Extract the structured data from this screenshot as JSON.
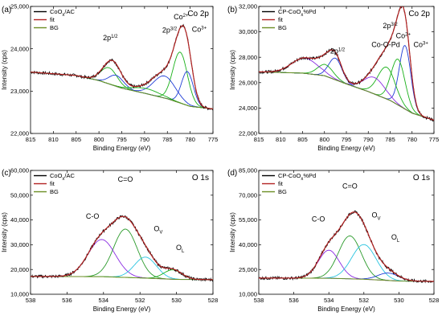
{
  "figure": {
    "panels": [
      "(a)",
      "(b)",
      "(c)",
      "(d)"
    ]
  },
  "colors": {
    "raw": "#000000",
    "fit": "#b22222",
    "bg": "#6b8e23",
    "blue": "#1f3cd6",
    "green": "#19b019",
    "cyan": "#29c4e0",
    "purple": "#8a2be2",
    "greenDark": "#2a9a2a"
  },
  "chart_data": [
    {
      "panel": "(a)",
      "type": "line",
      "title": "Co 2p",
      "xlabel": "Binding Energy (eV)",
      "ylabel": "Intensity (cps)",
      "xlim": [
        815,
        775
      ],
      "ylim": [
        22000,
        25000
      ],
      "xticks": [
        815,
        810,
        805,
        800,
        795,
        790,
        785,
        780,
        775
      ],
      "yticks": [
        22000,
        23000,
        24000,
        25000
      ],
      "ytick_labels": [
        "22,000",
        "23,000",
        "24,000",
        "25,000"
      ],
      "legend": {
        "position": "top-left",
        "entries": [
          "CoOx/AC",
          "fit",
          "BG"
        ]
      },
      "legend_parts": [
        [
          "CoO",
          "x",
          "/AC"
        ],
        [
          "fit"
        ],
        [
          "BG"
        ]
      ],
      "annotations": [
        {
          "parts": [
            [
              "2p",
              ""
            ],
            [
              "1/2",
              "sup"
            ]
          ],
          "x": 797.5,
          "y": 24200
        },
        {
          "parts": [
            [
              "2p",
              ""
            ],
            [
              "3/2",
              "sup"
            ]
          ],
          "x": 784.5,
          "y": 24380
        },
        {
          "parts": [
            [
              "Co",
              ""
            ],
            [
              "2+",
              "sup"
            ]
          ],
          "x": 782,
          "y": 24700
        },
        {
          "parts": [
            [
              "Co",
              ""
            ],
            [
              "3+",
              "sup"
            ]
          ],
          "x": 778,
          "y": 24400
        }
      ],
      "baseline_points": [
        [
          815,
          23450
        ],
        [
          805,
          23370
        ],
        [
          800,
          23250
        ],
        [
          795,
          23070
        ],
        [
          790,
          22950
        ],
        [
          785,
          22820
        ],
        [
          780,
          22640
        ],
        [
          775,
          22580
        ]
      ],
      "peaks": [
        {
          "center": 782.2,
          "height": 1200,
          "width": 1.6,
          "color": "green"
        },
        {
          "center": 780.6,
          "height": 800,
          "width": 1.3,
          "color": "blue"
        },
        {
          "center": 785.6,
          "height": 520,
          "width": 2.4,
          "color": "blue"
        },
        {
          "center": 797.8,
          "height": 380,
          "width": 1.8,
          "color": "green"
        },
        {
          "center": 796.2,
          "height": 260,
          "width": 1.6,
          "color": "blue"
        },
        {
          "center": 789.5,
          "height": 120,
          "width": 3.0,
          "color": "green"
        }
      ]
    },
    {
      "panel": "(b)",
      "type": "line",
      "title": "Co 2p",
      "xlabel": "Binding Energy (eV)",
      "ylabel": "Intensity (cps)",
      "xlim": [
        815,
        775
      ],
      "ylim": [
        22000,
        32000
      ],
      "xticks": [
        815,
        810,
        805,
        800,
        795,
        790,
        785,
        780,
        775
      ],
      "yticks": [
        22000,
        24000,
        26000,
        28000,
        30000,
        32000
      ],
      "ytick_labels": [
        "22,000",
        "24,000",
        "26,000",
        "28,000",
        "30,000",
        "32,000"
      ],
      "legend": {
        "position": "top-left",
        "entries": [
          "CP-CoOx%Pd",
          "fit",
          "BG"
        ]
      },
      "legend_parts": [
        [
          "CP-CoO",
          "x",
          "%Pd"
        ],
        [
          "fit"
        ],
        [
          "BG"
        ]
      ],
      "annotations": [
        {
          "parts": [
            [
              "2p",
              ""
            ],
            [
              "1/2",
              "sup"
            ]
          ],
          "x": 797,
          "y": 28300
        },
        {
          "parts": [
            [
              "2p",
              ""
            ],
            [
              "3/2",
              "sup"
            ]
          ],
          "x": 785,
          "y": 30300
        },
        {
          "parts": [
            [
              "Co",
              ""
            ],
            [
              "2+",
              "sup"
            ]
          ],
          "x": 782,
          "y": 29500
        },
        {
          "parts": [
            [
              "Co",
              ""
            ],
            [
              "3+",
              "sup"
            ]
          ],
          "x": 778,
          "y": 28800
        },
        {
          "parts": [
            [
              "Co-O-Pd",
              ""
            ]
          ],
          "x": 786,
          "y": 28800,
          "color": "fit"
        }
      ],
      "baseline_points": [
        [
          815,
          26850
        ],
        [
          805,
          26750
        ],
        [
          800,
          26550
        ],
        [
          795,
          25900
        ],
        [
          790,
          25300
        ],
        [
          785,
          24600
        ],
        [
          780,
          23600
        ],
        [
          775,
          23050
        ]
      ],
      "peaks": [
        {
          "center": 781.6,
          "height": 5000,
          "width": 1.3,
          "color": "blue"
        },
        {
          "center": 783.2,
          "height": 3600,
          "width": 1.6,
          "color": "green"
        },
        {
          "center": 785.8,
          "height": 2500,
          "width": 2.0,
          "color": "green"
        },
        {
          "center": 788.6,
          "height": 1300,
          "width": 2.4,
          "color": "purple"
        },
        {
          "center": 797.5,
          "height": 1700,
          "width": 1.5,
          "color": "blue"
        },
        {
          "center": 799.8,
          "height": 900,
          "width": 1.8,
          "color": "green"
        },
        {
          "center": 804.5,
          "height": 1200,
          "width": 3.0,
          "color": "purple"
        }
      ]
    },
    {
      "panel": "(c)",
      "type": "line",
      "title": "O 1s",
      "xlabel": "Binding Energy (eV)",
      "ylabel": "Intensity (cps)",
      "xlim": [
        538,
        528
      ],
      "ylim": [
        10000,
        60000
      ],
      "xticks": [
        538,
        536,
        534,
        532,
        530,
        528
      ],
      "yticks": [
        10000,
        20000,
        30000,
        40000,
        50000,
        60000
      ],
      "ytick_labels": [
        "10,000",
        "20,000",
        "30,000",
        "40,000",
        "50,000",
        "60,000"
      ],
      "legend": {
        "position": "top-left",
        "entries": [
          "CoOx/AC",
          "fit",
          "BG"
        ]
      },
      "legend_parts": [
        [
          "CoO",
          "x",
          "/AC"
        ],
        [
          "fit"
        ],
        [
          "BG"
        ]
      ],
      "annotations": [
        {
          "parts": [
            [
              "C=O",
              ""
            ]
          ],
          "x": 532.8,
          "y": 55500
        },
        {
          "parts": [
            [
              "C-O",
              ""
            ]
          ],
          "x": 534.6,
          "y": 40500
        },
        {
          "parts": [
            [
              "O",
              ""
            ],
            [
              "V",
              "sub"
            ]
          ],
          "x": 531.0,
          "y": 35500
        },
        {
          "parts": [
            [
              "O",
              ""
            ],
            [
              "L",
              "sub"
            ]
          ],
          "x": 529.8,
          "y": 27800
        }
      ],
      "baseline_points": [
        [
          538,
          17200
        ],
        [
          534,
          17100
        ],
        [
          532,
          16600
        ],
        [
          530,
          16000
        ],
        [
          528,
          15900
        ]
      ],
      "peaks": [
        {
          "center": 532.8,
          "height": 19500,
          "width": 0.65,
          "color": "greenDark"
        },
        {
          "center": 534.1,
          "height": 15000,
          "width": 0.75,
          "color": "purple"
        },
        {
          "center": 531.7,
          "height": 8500,
          "width": 0.6,
          "color": "cyan"
        },
        {
          "center": 530.2,
          "height": 3800,
          "width": 0.5,
          "color": "green"
        }
      ]
    },
    {
      "panel": "(d)",
      "type": "line",
      "title": "O 1s",
      "xlabel": "Binding Energy (eV)",
      "ylabel": "Intensity (cps)",
      "xlim": [
        538,
        528
      ],
      "ylim": [
        10000,
        85000
      ],
      "xticks": [
        538,
        536,
        534,
        532,
        530,
        528
      ],
      "yticks": [
        10000,
        25000,
        40000,
        55000,
        70000,
        85000
      ],
      "ytick_labels": [
        "10,000",
        "25,000",
        "40,000",
        "55,000",
        "70,000",
        "85,000"
      ],
      "legend": {
        "position": "top-left",
        "entries": [
          "CP-CoOx%Pd",
          "fit",
          "BG"
        ]
      },
      "legend_parts": [
        [
          "CP-CoO",
          "x",
          "%Pd"
        ],
        [
          "fit"
        ],
        [
          "BG"
        ]
      ],
      "annotations": [
        {
          "parts": [
            [
              "C=O",
              ""
            ]
          ],
          "x": 532.8,
          "y": 74000
        },
        {
          "parts": [
            [
              "C-O",
              ""
            ]
          ],
          "x": 534.6,
          "y": 54000
        },
        {
          "parts": [
            [
              "O",
              ""
            ],
            [
              "V",
              "sub"
            ]
          ],
          "x": 531.3,
          "y": 56500
        },
        {
          "parts": [
            [
              "O",
              ""
            ],
            [
              "L",
              "sub"
            ]
          ],
          "x": 530.2,
          "y": 43000
        }
      ],
      "baseline_points": [
        [
          538,
          19800
        ],
        [
          534,
          19700
        ],
        [
          532,
          19100
        ],
        [
          530,
          18000
        ],
        [
          528,
          17800
        ]
      ],
      "peaks": [
        {
          "center": 532.8,
          "height": 26000,
          "width": 0.65,
          "color": "greenDark"
        },
        {
          "center": 534.0,
          "height": 17000,
          "width": 0.6,
          "color": "purple"
        },
        {
          "center": 532.0,
          "height": 21000,
          "width": 0.7,
          "color": "cyan"
        },
        {
          "center": 530.6,
          "height": 4500,
          "width": 0.6,
          "color": "blue"
        }
      ]
    }
  ]
}
